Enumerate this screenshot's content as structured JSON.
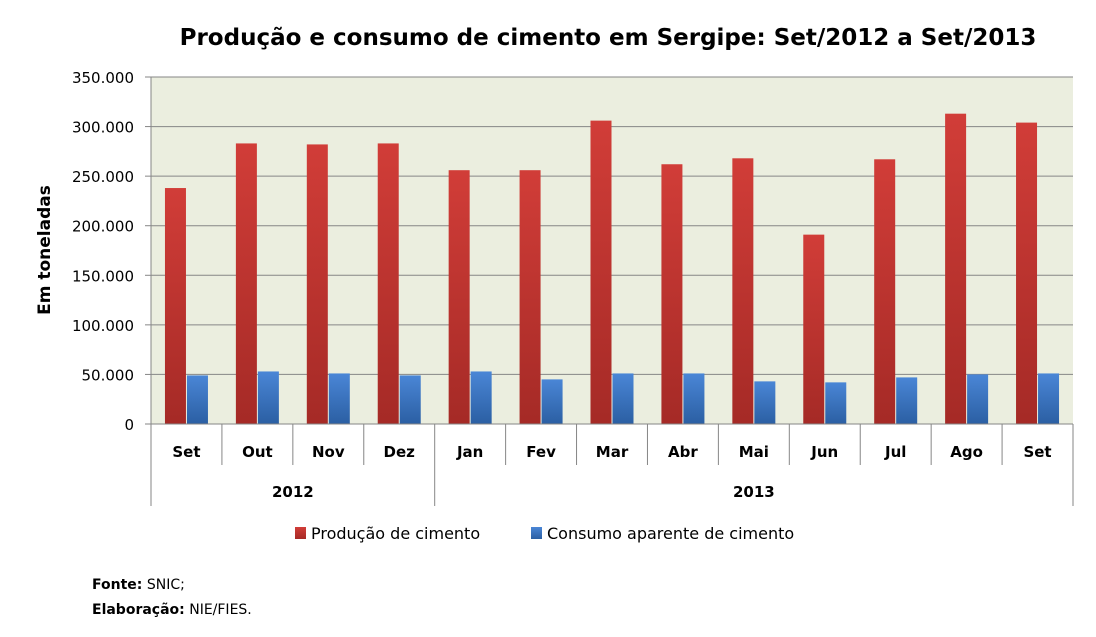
{
  "chart_data": {
    "type": "bar",
    "title": "Produção e consumo de cimento em Sergipe: Set/2012 a Set/2013",
    "xlabel": "",
    "ylabel": "Em toneladas",
    "ylim": [
      0,
      350000
    ],
    "yticks": [
      0,
      50000,
      100000,
      150000,
      200000,
      250000,
      300000,
      350000
    ],
    "ytick_labels": [
      "0",
      "50.000",
      "100.000",
      "150.000",
      "200.000",
      "250.000",
      "300.000",
      "350.000"
    ],
    "categories": [
      "Set",
      "Out",
      "Nov",
      "Dez",
      "Jan",
      "Fev",
      "Mar",
      "Abr",
      "Mai",
      "Jun",
      "Jul",
      "Ago",
      "Set"
    ],
    "year_groups": [
      {
        "label": "2012",
        "count": 4
      },
      {
        "label": "2013",
        "count": 9
      }
    ],
    "grid": true,
    "legend_position": "bottom",
    "series": [
      {
        "name": "Produção de cimento",
        "color": "#c0392b",
        "values": [
          238000,
          283000,
          282000,
          283000,
          256000,
          256000,
          306000,
          262000,
          268000,
          191000,
          267000,
          313000,
          304000
        ]
      },
      {
        "name": "Consumo aparente de cimento",
        "color": "#3a78c9",
        "values": [
          49000,
          53000,
          51000,
          49000,
          53000,
          45000,
          51000,
          51000,
          43000,
          42000,
          47000,
          50000,
          51000
        ]
      }
    ]
  },
  "footer": {
    "source_label": "Fonte:",
    "source_value": "SNIC;",
    "elaboration_label": "Elaboração:",
    "elaboration_value": "NIE/FIES."
  },
  "colors": {
    "plot_background": "#ebeedf",
    "gridline": "#868686",
    "production_top": "#d13d38",
    "production_bottom": "#a52a26",
    "consumption_top": "#4a86d6",
    "consumption_bottom": "#2b5fa3"
  }
}
